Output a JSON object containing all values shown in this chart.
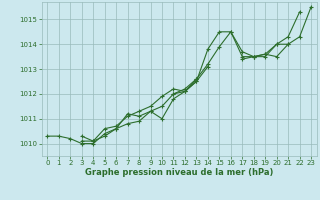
{
  "xlabel": "Graphe pression niveau de la mer (hPa)",
  "background_color": "#cce8ee",
  "grid_color": "#99bbbb",
  "line_color": "#2d6e2d",
  "xlim": [
    -0.5,
    23.5
  ],
  "ylim": [
    1009.5,
    1015.7
  ],
  "yticks": [
    1010,
    1011,
    1012,
    1013,
    1014,
    1015
  ],
  "xticks": [
    0,
    1,
    2,
    3,
    4,
    5,
    6,
    7,
    8,
    9,
    10,
    11,
    12,
    13,
    14,
    15,
    16,
    17,
    18,
    19,
    20,
    21,
    22,
    23
  ],
  "series": [
    [
      1010.3,
      1010.3,
      1010.2,
      1010.0,
      1010.0,
      1010.4,
      1010.6,
      1011.2,
      1011.1,
      1011.3,
      1011.0,
      1011.8,
      1012.1,
      1012.5,
      1013.8,
      1014.5,
      1014.5,
      1013.7,
      1013.5,
      1013.5,
      1014.0,
      1014.3,
      1015.3,
      null
    ],
    [
      null,
      null,
      null,
      1010.1,
      1010.1,
      1010.3,
      1010.6,
      1010.8,
      1010.9,
      1011.3,
      1011.5,
      1012.0,
      1012.1,
      1012.5,
      1013.1,
      null,
      null,
      1013.4,
      1013.5,
      1013.6,
      1013.5,
      1014.0,
      null,
      null
    ],
    [
      null,
      null,
      null,
      1010.3,
      1010.1,
      1010.6,
      1010.7,
      1011.1,
      1011.3,
      1011.5,
      1011.9,
      1012.2,
      1012.1,
      1012.6,
      null,
      null,
      null,
      null,
      null,
      null,
      null,
      null,
      null,
      null
    ],
    [
      null,
      null,
      null,
      null,
      null,
      null,
      null,
      null,
      null,
      null,
      null,
      1012.0,
      1012.2,
      1012.6,
      1013.2,
      1013.9,
      1014.5,
      1013.5,
      1013.5,
      1013.6,
      1014.0,
      1014.0,
      1014.3,
      1015.5
    ]
  ]
}
